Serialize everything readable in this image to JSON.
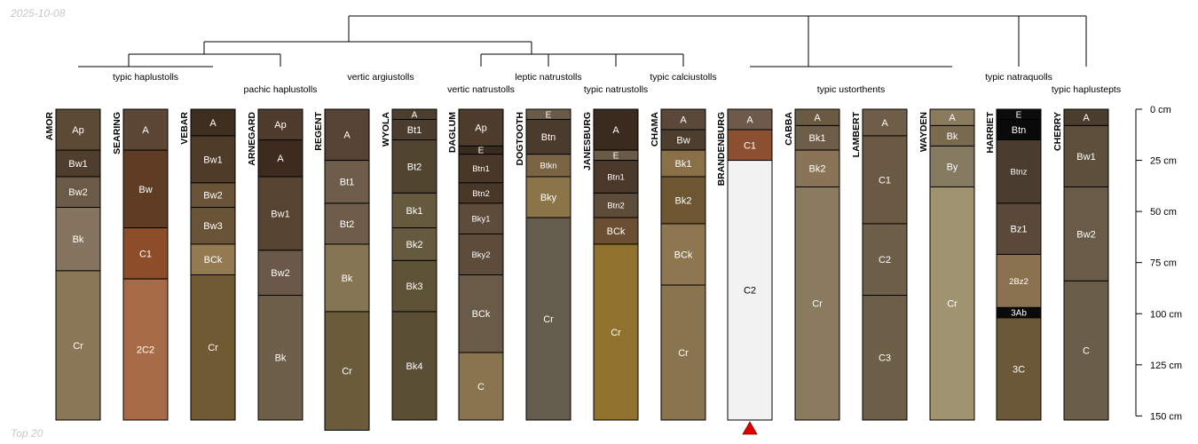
{
  "corner_date": "2025-10-08",
  "corner_footer": "Top 20",
  "colors": {
    "line": "#000000",
    "marker": "#e00000"
  },
  "depth_axis": {
    "unit": "cm",
    "max": 150,
    "ticks": [
      {
        "value": 0,
        "label": "0 cm"
      },
      {
        "value": 25,
        "label": "25 cm"
      },
      {
        "value": 50,
        "label": "50 cm"
      },
      {
        "value": 75,
        "label": "75 cm"
      },
      {
        "value": 100,
        "label": "100 cm"
      },
      {
        "value": 125,
        "label": "125 cm"
      },
      {
        "value": 150,
        "label": "150 cm"
      }
    ]
  },
  "taxa": [
    {
      "label": "typic haplustolls"
    },
    {
      "label": "pachic haplustolls"
    },
    {
      "label": "vertic argiustolls"
    },
    {
      "label": "vertic natrustolls"
    },
    {
      "label": "leptic natrustolls"
    },
    {
      "label": "typic natrustolls"
    },
    {
      "label": "typic calciustolls"
    },
    {
      "label": "typic ustorthents"
    },
    {
      "label": "typic natraquolls"
    },
    {
      "label": "typic haplustepts"
    }
  ],
  "profiles": [
    {
      "name": "AMOR",
      "horizons": [
        {
          "name": "Ap",
          "top": 0,
          "bottom": 20,
          "color": "#5d4a36"
        },
        {
          "name": "Bw1",
          "top": 20,
          "bottom": 33,
          "color": "#4f3e2d"
        },
        {
          "name": "Bw2",
          "top": 33,
          "bottom": 48,
          "color": "#6a5a47"
        },
        {
          "name": "Bk",
          "top": 48,
          "bottom": 79,
          "color": "#857560"
        },
        {
          "name": "Cr",
          "top": 79,
          "bottom": 152,
          "color": "#8a7757"
        }
      ]
    },
    {
      "name": "SEARING",
      "horizons": [
        {
          "name": "A",
          "top": 0,
          "bottom": 20,
          "color": "#5c4636"
        },
        {
          "name": "Bw",
          "top": 20,
          "bottom": 58,
          "color": "#5e3d24"
        },
        {
          "name": "C1",
          "top": 58,
          "bottom": 83,
          "color": "#8c4d28"
        },
        {
          "name": "2C2",
          "top": 83,
          "bottom": 152,
          "color": "#a86b48"
        }
      ]
    },
    {
      "name": "VEBAR",
      "horizons": [
        {
          "name": "A",
          "top": 0,
          "bottom": 13,
          "color": "#3e2e1f"
        },
        {
          "name": "Bw1",
          "top": 13,
          "bottom": 36,
          "color": "#4e3b28"
        },
        {
          "name": "Bw2",
          "top": 36,
          "bottom": 48,
          "color": "#6a5437"
        },
        {
          "name": "Bw3",
          "top": 48,
          "bottom": 66,
          "color": "#6a5437"
        },
        {
          "name": "BCk",
          "top": 66,
          "bottom": 81,
          "color": "#947a50"
        },
        {
          "name": "Cr",
          "top": 81,
          "bottom": 152,
          "color": "#6f5a34"
        }
      ]
    },
    {
      "name": "ARNEGARD",
      "horizons": [
        {
          "name": "Ap",
          "top": 0,
          "bottom": 15,
          "color": "#4f3b2c"
        },
        {
          "name": "A",
          "top": 15,
          "bottom": 33,
          "color": "#3c2b1e"
        },
        {
          "name": "Bw1",
          "top": 33,
          "bottom": 69,
          "color": "#574331"
        },
        {
          "name": "Bw2",
          "top": 69,
          "bottom": 91,
          "color": "#6a5849"
        },
        {
          "name": "Bk",
          "top": 91,
          "bottom": 152,
          "color": "#6e5f4b"
        }
      ]
    },
    {
      "name": "REGENT",
      "horizons": [
        {
          "name": "A",
          "top": 0,
          "bottom": 25,
          "color": "#574333"
        },
        {
          "name": "Bt1",
          "top": 25,
          "bottom": 46,
          "color": "#6e5d4a"
        },
        {
          "name": "Bt2",
          "top": 46,
          "bottom": 66,
          "color": "#6e5d4a"
        },
        {
          "name": "Bk",
          "top": 66,
          "bottom": 99,
          "color": "#857552"
        },
        {
          "name": "Cr",
          "top": 99,
          "bottom": 157,
          "color": "#6a5b3b"
        }
      ]
    },
    {
      "name": "WYOLA",
      "horizons": [
        {
          "name": "A",
          "top": 0,
          "bottom": 5,
          "color": "#4c3e2e"
        },
        {
          "name": "Bt1",
          "top": 5,
          "bottom": 15,
          "color": "#4c3e2e"
        },
        {
          "name": "Bt2",
          "top": 15,
          "bottom": 41,
          "color": "#514430"
        },
        {
          "name": "Bk1",
          "top": 41,
          "bottom": 58,
          "color": "#665a3e"
        },
        {
          "name": "Bk2",
          "top": 58,
          "bottom": 74,
          "color": "#665a3e"
        },
        {
          "name": "Bk3",
          "top": 74,
          "bottom": 99,
          "color": "#5f5337"
        },
        {
          "name": "Bk4",
          "top": 99,
          "bottom": 152,
          "color": "#5a4e34"
        }
      ]
    },
    {
      "name": "DAGLUM",
      "horizons": [
        {
          "name": "Ap",
          "top": 0,
          "bottom": 18,
          "color": "#4e3d2c"
        },
        {
          "name": "E",
          "top": 18,
          "bottom": 22,
          "color": "#3a2b1f"
        },
        {
          "name": "Btn1",
          "top": 22,
          "bottom": 36,
          "color": "#493828"
        },
        {
          "name": "Btn2",
          "top": 36,
          "bottom": 46,
          "color": "#493828"
        },
        {
          "name": "Bky1",
          "top": 46,
          "bottom": 61,
          "color": "#5e4c3a"
        },
        {
          "name": "Bky2",
          "top": 61,
          "bottom": 81,
          "color": "#5e4c3a"
        },
        {
          "name": "BCk",
          "top": 81,
          "bottom": 119,
          "color": "#6a5a48"
        },
        {
          "name": "C",
          "top": 119,
          "bottom": 152,
          "color": "#8a7450"
        }
      ]
    },
    {
      "name": "DOGTOOTH",
      "horizons": [
        {
          "name": "E",
          "top": 0,
          "bottom": 5,
          "color": "#6a5a48"
        },
        {
          "name": "Btn",
          "top": 5,
          "bottom": 22,
          "color": "#4a3b2c"
        },
        {
          "name": "Btkn",
          "top": 22,
          "bottom": 33,
          "color": "#7a6444"
        },
        {
          "name": "Bky",
          "top": 33,
          "bottom": 53,
          "color": "#8a7448"
        },
        {
          "name": "Cr",
          "top": 53,
          "bottom": 152,
          "color": "#645d4d"
        }
      ]
    },
    {
      "name": "JANESBURG",
      "horizons": [
        {
          "name": "A",
          "top": 0,
          "bottom": 20,
          "color": "#3a2b1e"
        },
        {
          "name": "E",
          "top": 20,
          "bottom": 25,
          "color": "#6a5a48"
        },
        {
          "name": "Btn1",
          "top": 25,
          "bottom": 41,
          "color": "#4a392a"
        },
        {
          "name": "Btn2",
          "top": 41,
          "bottom": 53,
          "color": "#5e4c3a"
        },
        {
          "name": "BCk",
          "top": 53,
          "bottom": 66,
          "color": "#6a5030"
        },
        {
          "name": "Cr",
          "top": 66,
          "bottom": 152,
          "color": "#90722e"
        }
      ]
    },
    {
      "name": "CHAMA",
      "horizons": [
        {
          "name": "A",
          "top": 0,
          "bottom": 10,
          "color": "#5a4838"
        },
        {
          "name": "Bw",
          "top": 10,
          "bottom": 20,
          "color": "#4e3e2e"
        },
        {
          "name": "Bk1",
          "top": 20,
          "bottom": 33,
          "color": "#8a7048"
        },
        {
          "name": "Bk2",
          "top": 33,
          "bottom": 56,
          "color": "#6e5632"
        },
        {
          "name": "BCk",
          "top": 56,
          "bottom": 86,
          "color": "#8e7650"
        },
        {
          "name": "Cr",
          "top": 86,
          "bottom": 152,
          "color": "#8a7450"
        }
      ]
    },
    {
      "name": "BRANDENBURG",
      "marker": true,
      "horizons": [
        {
          "name": "A",
          "top": 0,
          "bottom": 10,
          "color": "#6e5a4a"
        },
        {
          "name": "C1",
          "top": 10,
          "bottom": 25,
          "color": "#8c5030"
        },
        {
          "name": "C2",
          "top": 25,
          "bottom": 152,
          "color": "#f2f2f2"
        }
      ]
    },
    {
      "name": "CABBA",
      "horizons": [
        {
          "name": "A",
          "top": 0,
          "bottom": 8,
          "color": "#6a5a42"
        },
        {
          "name": "Bk1",
          "top": 8,
          "bottom": 20,
          "color": "#6e5d48"
        },
        {
          "name": "Bk2",
          "top": 20,
          "bottom": 38,
          "color": "#8a7458"
        },
        {
          "name": "Cr",
          "top": 38,
          "bottom": 152,
          "color": "#8a7a5e"
        }
      ]
    },
    {
      "name": "LAMBERT",
      "horizons": [
        {
          "name": "A",
          "top": 0,
          "bottom": 13,
          "color": "#6e5d48"
        },
        {
          "name": "C1",
          "top": 13,
          "bottom": 56,
          "color": "#6a5a44"
        },
        {
          "name": "C2",
          "top": 56,
          "bottom": 91,
          "color": "#6e6048"
        },
        {
          "name": "C3",
          "top": 91,
          "bottom": 152,
          "color": "#6e6048"
        }
      ]
    },
    {
      "name": "WAYDEN",
      "horizons": [
        {
          "name": "A",
          "top": 0,
          "bottom": 8,
          "color": "#8a7a5e"
        },
        {
          "name": "Bk",
          "top": 8,
          "bottom": 18,
          "color": "#7a6a50"
        },
        {
          "name": "By",
          "top": 18,
          "bottom": 38,
          "color": "#857a60"
        },
        {
          "name": "Cr",
          "top": 38,
          "bottom": 152,
          "color": "#a09470"
        }
      ]
    },
    {
      "name": "HARRIET",
      "horizons": [
        {
          "name": "E",
          "top": 0,
          "bottom": 5,
          "color": "#0c0c0c"
        },
        {
          "name": "Btn",
          "top": 5,
          "bottom": 15,
          "color": "#0a0a0a"
        },
        {
          "name": "Btnz",
          "top": 15,
          "bottom": 46,
          "color": "#4a3c2e"
        },
        {
          "name": "Bz1",
          "top": 46,
          "bottom": 71,
          "color": "#5a4838"
        },
        {
          "name": "2Bz2",
          "top": 71,
          "bottom": 97,
          "color": "#8a7250"
        },
        {
          "name": "3Ab",
          "top": 97,
          "bottom": 102,
          "color": "#0a0a0a"
        },
        {
          "name": "3C",
          "top": 102,
          "bottom": 152,
          "color": "#6a5838"
        }
      ]
    },
    {
      "name": "CHERRY",
      "horizons": [
        {
          "name": "A",
          "top": 0,
          "bottom": 8,
          "color": "#4c3e2e"
        },
        {
          "name": "Bw1",
          "top": 8,
          "bottom": 38,
          "color": "#5e4f3c"
        },
        {
          "name": "Bw2",
          "top": 38,
          "bottom": 84,
          "color": "#6a5a48"
        },
        {
          "name": "C",
          "top": 84,
          "bottom": 152,
          "color": "#6a5e4a"
        }
      ]
    }
  ]
}
